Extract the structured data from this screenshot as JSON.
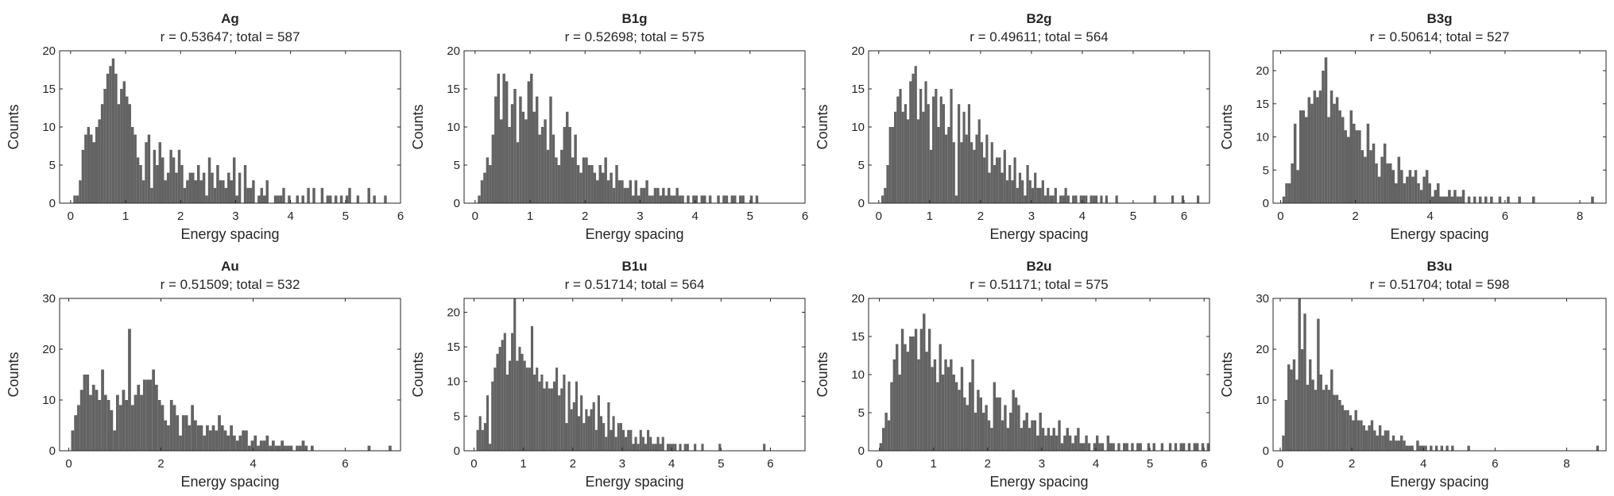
{
  "style": {
    "bar_color": "#636363",
    "axis_color": "#262626",
    "background": "#ffffff",
    "grid": false
  },
  "chart_data": [
    {
      "type": "bar",
      "title": "Ag",
      "subtitle": "r = 0.53647; total = 587",
      "xlabel": "Energy spacing",
      "ylabel": "Counts",
      "xlim": [
        -0.2,
        6
      ],
      "ylim": [
        0,
        20
      ],
      "xticks": [
        0,
        1,
        2,
        3,
        4,
        5,
        6
      ],
      "yticks": [
        0,
        5,
        10,
        15,
        20
      ],
      "bin_start": 0,
      "bin_width": 0.05,
      "values": [
        0,
        1,
        1,
        3,
        7,
        9,
        10,
        9,
        8,
        10,
        11,
        13,
        15,
        17,
        18,
        19,
        17,
        13,
        15,
        16,
        14,
        13,
        10,
        9,
        6,
        5,
        3,
        8,
        9,
        2,
        7,
        5,
        8,
        6,
        3,
        4,
        7,
        6,
        4,
        7,
        5,
        2,
        3,
        4,
        4,
        3,
        5,
        3,
        4,
        1,
        6,
        4,
        2,
        5,
        3,
        3,
        2,
        4,
        3,
        6,
        1,
        4,
        0,
        5,
        2,
        2,
        3,
        0,
        1,
        2,
        1,
        3,
        0,
        0,
        1,
        1,
        1,
        2,
        0,
        1,
        0,
        0,
        1,
        0,
        1,
        0,
        2,
        0,
        2,
        0,
        0,
        2,
        0,
        1,
        1,
        0,
        1,
        0,
        1,
        0,
        1,
        2,
        0,
        0,
        1,
        0,
        0,
        0,
        2,
        0,
        1,
        0,
        0,
        0,
        1
      ]
    },
    {
      "type": "bar",
      "title": "B1g",
      "subtitle": "r = 0.52698; total = 575",
      "xlabel": "Energy spacing",
      "ylabel": "Counts",
      "xlim": [
        -0.2,
        6
      ],
      "ylim": [
        0,
        20
      ],
      "xticks": [
        0,
        1,
        2,
        3,
        4,
        5,
        6
      ],
      "yticks": [
        0,
        5,
        10,
        15,
        20
      ],
      "bin_start": 0.05,
      "bin_width": 0.05,
      "values": [
        1,
        3,
        4,
        6,
        5,
        9,
        14,
        17,
        11,
        17,
        16,
        10,
        13,
        15,
        8,
        14,
        12,
        11,
        16,
        17,
        12,
        14,
        9,
        10,
        11,
        7,
        14,
        9,
        6,
        5,
        7,
        10,
        12,
        10,
        6,
        9,
        5,
        4,
        6,
        6,
        5,
        5,
        4,
        3,
        5,
        4,
        6,
        3,
        4,
        2,
        5,
        3,
        3,
        2,
        2,
        3,
        1,
        3,
        1,
        2,
        2,
        3,
        1,
        1,
        2,
        2,
        1,
        2,
        1,
        2,
        1,
        1,
        2,
        1,
        1,
        0,
        1,
        0,
        1,
        1,
        0,
        1,
        1,
        0,
        1,
        0,
        0,
        1,
        0,
        1,
        1,
        0,
        1,
        1,
        0,
        1,
        1,
        0,
        0,
        1,
        0,
        1
      ]
    },
    {
      "type": "bar",
      "title": "B2g",
      "subtitle": "r = 0.49611; total = 564",
      "xlabel": "Energy spacing",
      "ylabel": "Counts",
      "xlim": [
        -0.2,
        6.5
      ],
      "ylim": [
        0,
        20
      ],
      "xticks": [
        0,
        1,
        2,
        3,
        4,
        5,
        6
      ],
      "yticks": [
        0,
        5,
        10,
        15,
        20
      ],
      "bin_start": 0,
      "bin_width": 0.05,
      "values": [
        0,
        1,
        2,
        5,
        10,
        10,
        12,
        14,
        15,
        12,
        13,
        11,
        16,
        17,
        18,
        11,
        15,
        12,
        16,
        13,
        7,
        14,
        15,
        10,
        14,
        13,
        9,
        10,
        15,
        8,
        1,
        13,
        8,
        12,
        9,
        13,
        8,
        7,
        9,
        11,
        8,
        6,
        9,
        4,
        8,
        5,
        6,
        6,
        4,
        7,
        3,
        5,
        3,
        6,
        2,
        4,
        3,
        1,
        5,
        3,
        2,
        4,
        2,
        2,
        3,
        1,
        2,
        1,
        1,
        2,
        0,
        1,
        1,
        2,
        1,
        0,
        1,
        1,
        0,
        1,
        1,
        1,
        0,
        1,
        1,
        1,
        0,
        1,
        0,
        1,
        0,
        0,
        0,
        1,
        0,
        0,
        0,
        0,
        0,
        0,
        0,
        0,
        0,
        0,
        0,
        0,
        0,
        0,
        1,
        0,
        0,
        0,
        0,
        0,
        0,
        1,
        0,
        0,
        0,
        1,
        0,
        0,
        0,
        0,
        0,
        1
      ]
    },
    {
      "type": "bar",
      "title": "B3g",
      "subtitle": "r = 0.50614; total = 527",
      "xlabel": "Energy spacing",
      "ylabel": "Counts",
      "xlim": [
        -0.2,
        8.7
      ],
      "ylim": [
        0,
        23
      ],
      "xticks": [
        0,
        2,
        4,
        6,
        8
      ],
      "yticks": [
        0,
        5,
        10,
        15,
        20
      ],
      "bin_start": 0.05,
      "bin_width": 0.075,
      "values": [
        1,
        3,
        3,
        6,
        12,
        5,
        14,
        14,
        13,
        16,
        15,
        17,
        16,
        17,
        20,
        22,
        13,
        17,
        15,
        16,
        14,
        13,
        11,
        10,
        14,
        12,
        11,
        11,
        8,
        7,
        12,
        8,
        9,
        6,
        4,
        7,
        9,
        6,
        6,
        5,
        3,
        7,
        5,
        3,
        4,
        5,
        4,
        5,
        3,
        2,
        4,
        5,
        3,
        1,
        2,
        3,
        1,
        1,
        1,
        2,
        1,
        2,
        1,
        1,
        2,
        0,
        1,
        0,
        1,
        0,
        1,
        0,
        1,
        0,
        1,
        0,
        0,
        1,
        0,
        0,
        1,
        0,
        0,
        0,
        1,
        0,
        0,
        0,
        0,
        1,
        0,
        0,
        0,
        0,
        0,
        0,
        0,
        0,
        0,
        0,
        0,
        0,
        0,
        0,
        0,
        0,
        0,
        0,
        0,
        0,
        1
      ]
    },
    {
      "type": "bar",
      "title": "Au",
      "subtitle": "r = 0.51509; total = 532",
      "xlabel": "Energy spacing",
      "ylabel": "Counts",
      "xlim": [
        -0.2,
        7.2
      ],
      "ylim": [
        0,
        30
      ],
      "xticks": [
        0,
        2,
        4,
        6
      ],
      "yticks": [
        0,
        10,
        20,
        30
      ],
      "bin_start": 0.05,
      "bin_width": 0.065,
      "values": [
        4,
        7,
        9,
        12,
        15,
        15,
        11,
        13,
        12,
        10,
        16,
        11,
        10,
        8,
        4,
        11,
        9,
        12,
        10,
        24,
        9,
        11,
        13,
        11,
        14,
        14,
        14,
        16,
        13,
        10,
        9,
        6,
        5,
        10,
        9,
        7,
        3,
        7,
        7,
        5,
        9,
        6,
        5,
        5,
        3,
        5,
        4,
        5,
        4,
        7,
        5,
        4,
        3,
        5,
        3,
        2,
        3,
        4,
        4,
        1,
        2,
        3,
        1,
        2,
        2,
        3,
        1,
        2,
        1,
        1,
        2,
        1,
        1,
        1,
        0,
        1,
        1,
        2,
        1,
        0,
        1,
        0,
        0,
        0,
        0,
        0,
        0,
        0,
        0,
        0,
        0,
        0,
        0,
        0,
        0,
        0,
        0,
        0,
        0,
        1,
        0,
        0,
        0,
        0,
        0,
        0,
        1
      ]
    },
    {
      "type": "bar",
      "title": "B1u",
      "subtitle": "r = 0.51714; total = 564",
      "xlabel": "Energy spacing",
      "ylabel": "Counts",
      "xlim": [
        -0.2,
        6.7
      ],
      "ylim": [
        0,
        22
      ],
      "xticks": [
        0,
        1,
        2,
        3,
        4,
        5,
        6
      ],
      "yticks": [
        0,
        5,
        10,
        15,
        20
      ],
      "bin_start": 0.05,
      "bin_width": 0.05,
      "values": [
        3,
        5,
        3,
        4,
        8,
        1,
        10,
        12,
        14,
        15,
        16,
        17,
        11,
        13,
        17,
        22,
        13,
        15,
        14,
        13,
        12,
        12,
        18,
        11,
        12,
        10,
        11,
        9,
        10,
        9,
        9,
        10,
        12,
        8,
        9,
        11,
        4,
        10,
        6,
        7,
        10,
        5,
        8,
        4,
        6,
        5,
        6,
        7,
        3,
        8,
        5,
        4,
        2,
        7,
        3,
        5,
        2,
        4,
        4,
        3,
        2,
        3,
        3,
        1,
        2,
        1,
        3,
        2,
        1,
        3,
        2,
        1,
        1,
        2,
        1,
        2,
        0,
        1,
        1,
        1,
        1,
        0,
        1,
        0,
        1,
        1,
        0,
        0,
        1,
        0,
        0,
        1,
        0,
        0,
        0,
        0,
        0,
        0,
        1,
        0,
        0,
        0,
        0,
        0,
        0,
        0,
        0,
        0,
        0,
        0,
        0,
        0,
        0,
        0,
        0,
        0,
        1
      ]
    },
    {
      "type": "bar",
      "title": "B2u",
      "subtitle": "r = 0.51171; total = 575",
      "xlabel": "Energy spacing",
      "ylabel": "Counts",
      "xlim": [
        -0.2,
        6.1
      ],
      "ylim": [
        0,
        20
      ],
      "xticks": [
        0,
        1,
        2,
        3,
        4,
        5,
        6
      ],
      "yticks": [
        0,
        5,
        10,
        15,
        20
      ],
      "bin_start": 0,
      "bin_width": 0.05,
      "values": [
        1,
        3,
        5,
        4,
        9,
        12,
        14,
        10,
        16,
        14,
        13,
        15,
        15,
        16,
        12,
        16,
        18,
        13,
        16,
        11,
        12,
        9,
        14,
        10,
        12,
        11,
        12,
        10,
        9,
        8,
        11,
        7,
        6,
        9,
        12,
        5,
        8,
        7,
        5,
        6,
        4,
        3,
        9,
        7,
        7,
        4,
        6,
        3,
        5,
        8,
        7,
        6,
        3,
        4,
        5,
        3,
        4,
        4,
        2,
        5,
        3,
        2,
        3,
        2,
        3,
        2,
        4,
        1,
        2,
        3,
        2,
        1,
        2,
        3,
        1,
        1,
        2,
        1,
        0,
        1,
        2,
        1,
        1,
        0,
        2,
        1,
        1,
        0,
        1,
        0,
        1,
        1,
        0,
        1,
        0,
        1,
        1,
        0,
        0,
        1,
        0,
        1,
        0,
        0,
        1,
        0,
        0,
        1,
        0,
        1,
        0,
        1,
        1,
        0,
        1,
        0,
        1,
        1,
        0,
        1,
        0,
        1
      ]
    },
    {
      "type": "bar",
      "title": "B3u",
      "subtitle": "r = 0.51704; total = 598",
      "xlabel": "Energy spacing",
      "ylabel": "Counts",
      "xlim": [
        -0.2,
        9.1
      ],
      "ylim": [
        0,
        30
      ],
      "xticks": [
        0,
        2,
        4,
        6,
        8
      ],
      "yticks": [
        0,
        10,
        20,
        30
      ],
      "bin_start": 0.05,
      "bin_width": 0.075,
      "values": [
        3,
        10,
        17,
        16,
        18,
        14,
        30,
        20,
        27,
        13,
        18,
        14,
        12,
        26,
        15,
        12,
        13,
        12,
        16,
        11,
        11,
        10,
        9,
        8,
        8,
        7,
        6,
        8,
        6,
        6,
        5,
        4,
        5,
        6,
        4,
        3,
        5,
        3,
        4,
        4,
        2,
        3,
        2,
        2,
        3,
        2,
        1,
        1,
        1,
        0,
        2,
        1,
        1,
        1,
        0,
        1,
        0,
        1,
        0,
        1,
        0,
        1,
        0,
        1,
        0,
        0,
        0,
        0,
        0,
        1,
        0,
        0,
        0,
        0,
        0,
        0,
        0,
        0,
        0,
        0,
        0,
        0,
        0,
        0,
        0,
        0,
        0,
        0,
        0,
        0,
        0,
        0,
        0,
        0,
        0,
        0,
        0,
        0,
        0,
        0,
        0,
        0,
        0,
        0,
        0,
        0,
        0,
        0,
        0,
        0,
        0,
        0,
        0,
        0,
        0,
        0,
        0,
        1
      ]
    }
  ]
}
